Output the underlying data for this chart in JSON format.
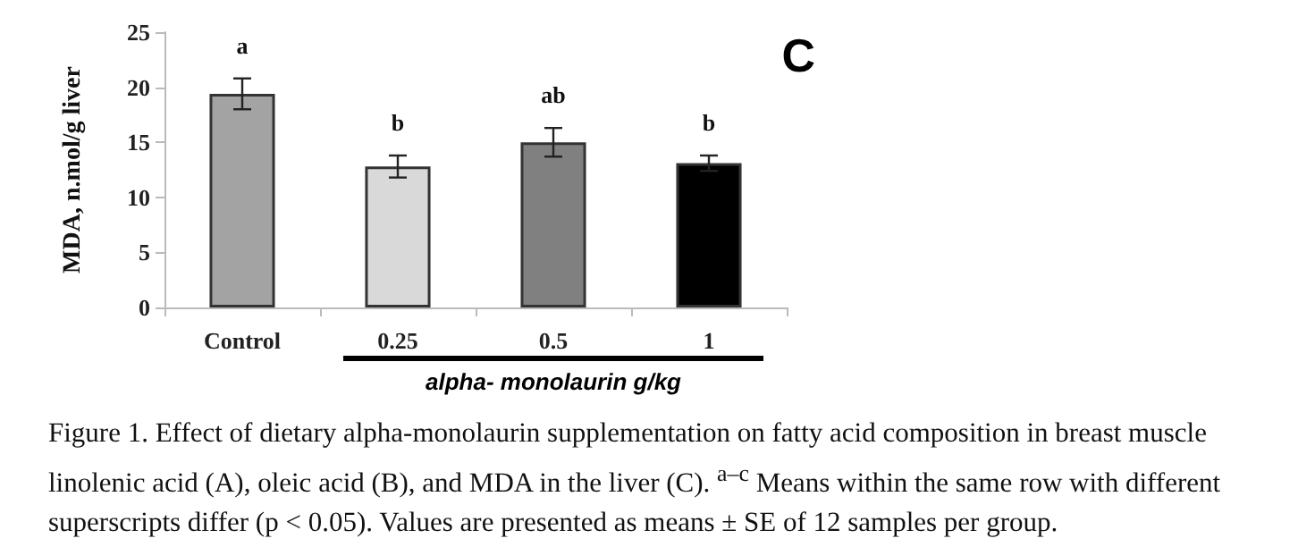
{
  "chart_data": {
    "type": "bar",
    "ylabel": "MDA, n.mol/g liver",
    "xlabel": "alpha- monolaurin g/kg",
    "categories": [
      "Control",
      "0.25",
      "0.5",
      "1"
    ],
    "values": [
      19.4,
      12.8,
      15.0,
      13.1
    ],
    "colors": [
      "#a3a3a3",
      "#d9d9d9",
      "#808080",
      "#000000"
    ],
    "errors": [
      1.4,
      1.0,
      1.3,
      0.7
    ],
    "ylim": [
      0,
      25
    ],
    "yticks": [
      0,
      5,
      10,
      15,
      20,
      25
    ],
    "grid": false,
    "annotations": [
      "a",
      "b",
      "ab",
      "b",
      "C",
      "Figure 1. Effect of dietary alpha-monolaurin supplementation on fatty acid composition in breast muscle linolenic acid (A), oleic acid (B), and MDA in the liver (C). $^{a–c}$ Means within the same row with different superscripts differ (p < 0.05). Values are presented as means ± SE of 12 samples per group."
    ]
  }
}
